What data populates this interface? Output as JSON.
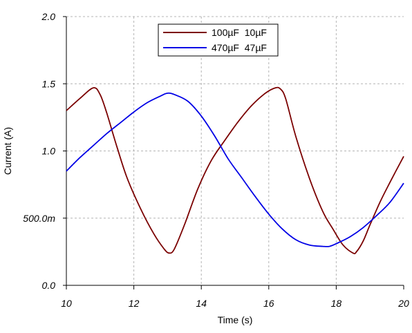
{
  "chart_data": {
    "type": "line",
    "title": "",
    "xlabel": "Time (s)",
    "ylabel": "Current (A)",
    "xlim": [
      10,
      20
    ],
    "ylim": [
      0,
      2
    ],
    "x_ticks": [
      10,
      12,
      14,
      16,
      18,
      20
    ],
    "x_tick_labels": [
      "10",
      "12",
      "14",
      "16",
      "18",
      "20"
    ],
    "y_ticks": [
      0,
      0.5,
      1.0,
      1.5,
      2.0
    ],
    "y_tick_labels": [
      "0.0",
      "500.0m",
      "1.0",
      "1.5",
      "2.0"
    ],
    "grid": true,
    "legend_position": "top-center",
    "series": [
      {
        "name": "100µF  10µF",
        "color": "#7b0000",
        "x": [
          10.0,
          10.4,
          10.8,
          11.0,
          11.2,
          11.5,
          11.8,
          12.2,
          12.6,
          12.9,
          13.05,
          13.2,
          13.5,
          13.9,
          14.3,
          14.7,
          15.1,
          15.5,
          15.9,
          16.2,
          16.35,
          16.5,
          16.8,
          17.2,
          17.6,
          17.9,
          18.2,
          18.5,
          18.6,
          18.8,
          19.0,
          19.3,
          19.6,
          20.0
        ],
        "y": [
          1.3,
          1.39,
          1.47,
          1.42,
          1.28,
          1.03,
          0.8,
          0.57,
          0.38,
          0.27,
          0.24,
          0.27,
          0.45,
          0.72,
          0.93,
          1.08,
          1.22,
          1.34,
          1.43,
          1.47,
          1.46,
          1.39,
          1.11,
          0.8,
          0.55,
          0.42,
          0.3,
          0.24,
          0.25,
          0.33,
          0.45,
          0.62,
          0.77,
          0.96
        ]
      },
      {
        "name": "470µF  47µF",
        "color": "#0000e6",
        "x": [
          10.0,
          10.4,
          10.8,
          11.2,
          11.6,
          12.0,
          12.4,
          12.8,
          13.0,
          13.2,
          13.6,
          14.0,
          14.4,
          14.8,
          15.2,
          15.6,
          16.0,
          16.4,
          16.8,
          17.2,
          17.6,
          17.8,
          18.0,
          18.4,
          18.8,
          19.2,
          19.6,
          20.0
        ],
        "y": [
          0.85,
          0.95,
          1.04,
          1.13,
          1.21,
          1.29,
          1.36,
          1.41,
          1.43,
          1.42,
          1.37,
          1.26,
          1.11,
          0.94,
          0.8,
          0.66,
          0.53,
          0.42,
          0.34,
          0.3,
          0.29,
          0.29,
          0.31,
          0.36,
          0.43,
          0.52,
          0.62,
          0.76
        ]
      }
    ]
  }
}
